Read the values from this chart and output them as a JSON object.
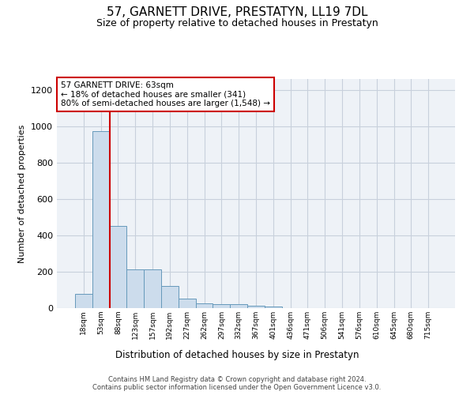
{
  "title": "57, GARNETT DRIVE, PRESTATYN, LL19 7DL",
  "subtitle": "Size of property relative to detached houses in Prestatyn",
  "xlabel": "Distribution of detached houses by size in Prestatyn",
  "ylabel": "Number of detached properties",
  "bar_color": "#ccdcec",
  "bar_edge_color": "#6699bb",
  "bin_labels": [
    "18sqm",
    "53sqm",
    "88sqm",
    "123sqm",
    "157sqm",
    "192sqm",
    "227sqm",
    "262sqm",
    "297sqm",
    "332sqm",
    "367sqm",
    "401sqm",
    "436sqm",
    "471sqm",
    "506sqm",
    "541sqm",
    "576sqm",
    "610sqm",
    "645sqm",
    "680sqm",
    "715sqm"
  ],
  "bar_heights": [
    80,
    975,
    450,
    215,
    215,
    120,
    50,
    27,
    20,
    20,
    12,
    8,
    0,
    0,
    0,
    0,
    0,
    0,
    0,
    0,
    0
  ],
  "ylim": [
    0,
    1260
  ],
  "yticks": [
    0,
    200,
    400,
    600,
    800,
    1000,
    1200
  ],
  "red_line_x": 1.5,
  "annotation_text": "57 GARNETT DRIVE: 63sqm\n← 18% of detached houses are smaller (341)\n80% of semi-detached houses are larger (1,548) →",
  "annotation_box_color": "#ffffff",
  "annotation_border_color": "#cc0000",
  "footer_text": "Contains HM Land Registry data © Crown copyright and database right 2024.\nContains public sector information licensed under the Open Government Licence v3.0.",
  "grid_color": "#c8d0dc",
  "background_color": "#eef2f7",
  "fig_width": 6.0,
  "fig_height": 5.0,
  "dpi": 100
}
